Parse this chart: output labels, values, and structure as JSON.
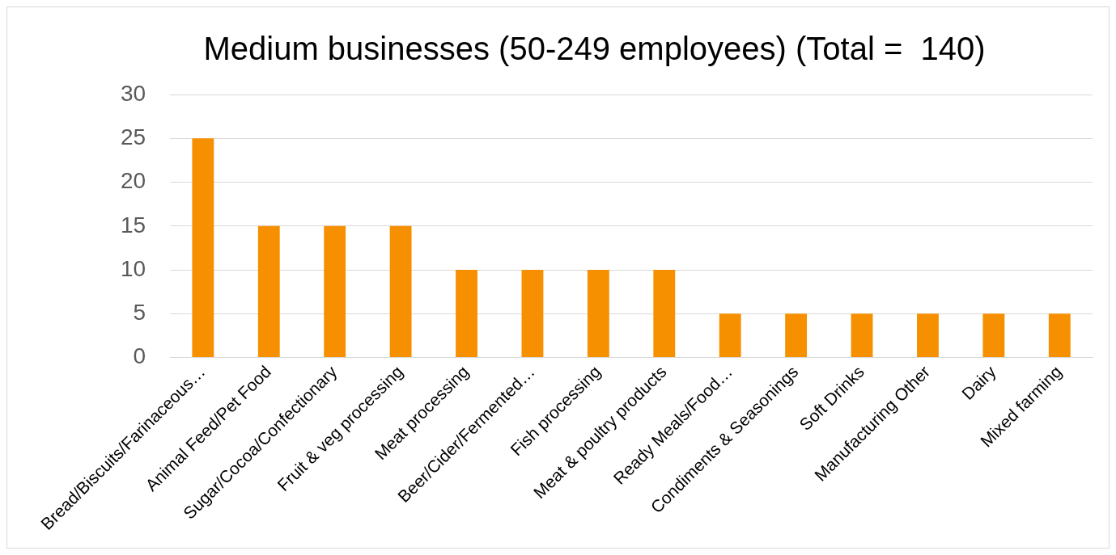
{
  "chart_data": {
    "type": "bar",
    "title": "Medium businesses (50-249 employees) (Total =  140)",
    "categories": [
      "Bread/Biscuits/Farinaceous…",
      "Animal Feed/Pet Food",
      "Sugar/Cocoa/Confectionary",
      "Fruit & veg processing",
      "Meat processing",
      "Beer/Cider/Fermented…",
      "Fish processing",
      "Meat & poultry products",
      "Ready Meals/Food…",
      "Condiments & Seasonings",
      "Soft Drinks",
      "Manufacturing Other",
      "Dairy",
      "Mixed farming"
    ],
    "values": [
      25,
      15,
      15,
      15,
      10,
      10,
      10,
      10,
      5,
      5,
      5,
      5,
      5,
      5
    ],
    "color": "#f79000",
    "ylim": [
      0,
      30
    ],
    "yticks": [
      0,
      5,
      10,
      15,
      20,
      25,
      30
    ],
    "grid": "y",
    "legend": false
  }
}
